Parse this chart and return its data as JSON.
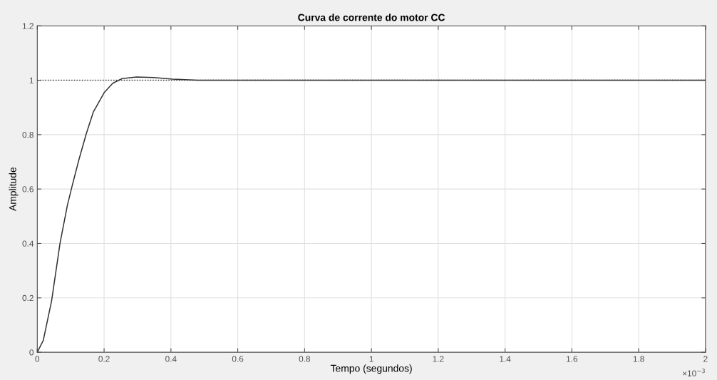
{
  "chart_data": {
    "type": "line",
    "title": "Curva de corrente do motor CC",
    "xlabel": "Tempo (segundos)",
    "ylabel": "Amplitude",
    "x": [
      0,
      0.018,
      0.043,
      0.068,
      0.09,
      0.104,
      0.125,
      0.147,
      0.168,
      0.2,
      0.226,
      0.254,
      0.297,
      0.348,
      0.405,
      0.48,
      0.6,
      1,
      1.5,
      2
    ],
    "series": [
      {
        "color": "#333333",
        "values": [
          0,
          0.044,
          0.19,
          0.4,
          0.54,
          0.61,
          0.71,
          0.805,
          0.884,
          0.954,
          0.989,
          1.006,
          1.012,
          1.01,
          1.004,
          1.0,
          1.0,
          1.0,
          1.0,
          1.0
        ]
      }
    ],
    "xlim": [
      0,
      2
    ],
    "ylim": [
      0,
      1.2
    ],
    "xticks": [
      0,
      0.2,
      0.4,
      0.6,
      0.8,
      1,
      1.2,
      1.4,
      1.6,
      1.8,
      2
    ],
    "yticks": [
      0,
      0.2,
      0.4,
      0.6,
      0.8,
      1,
      1.2
    ],
    "ref_lines": [
      {
        "axis": "y",
        "value": 1,
        "color": "#333333",
        "line_style": "dotted"
      }
    ],
    "annotations": [
      "×10$^{−3}$"
    ],
    "grid": true,
    "line_style": "solid",
    "marker": "none"
  }
}
